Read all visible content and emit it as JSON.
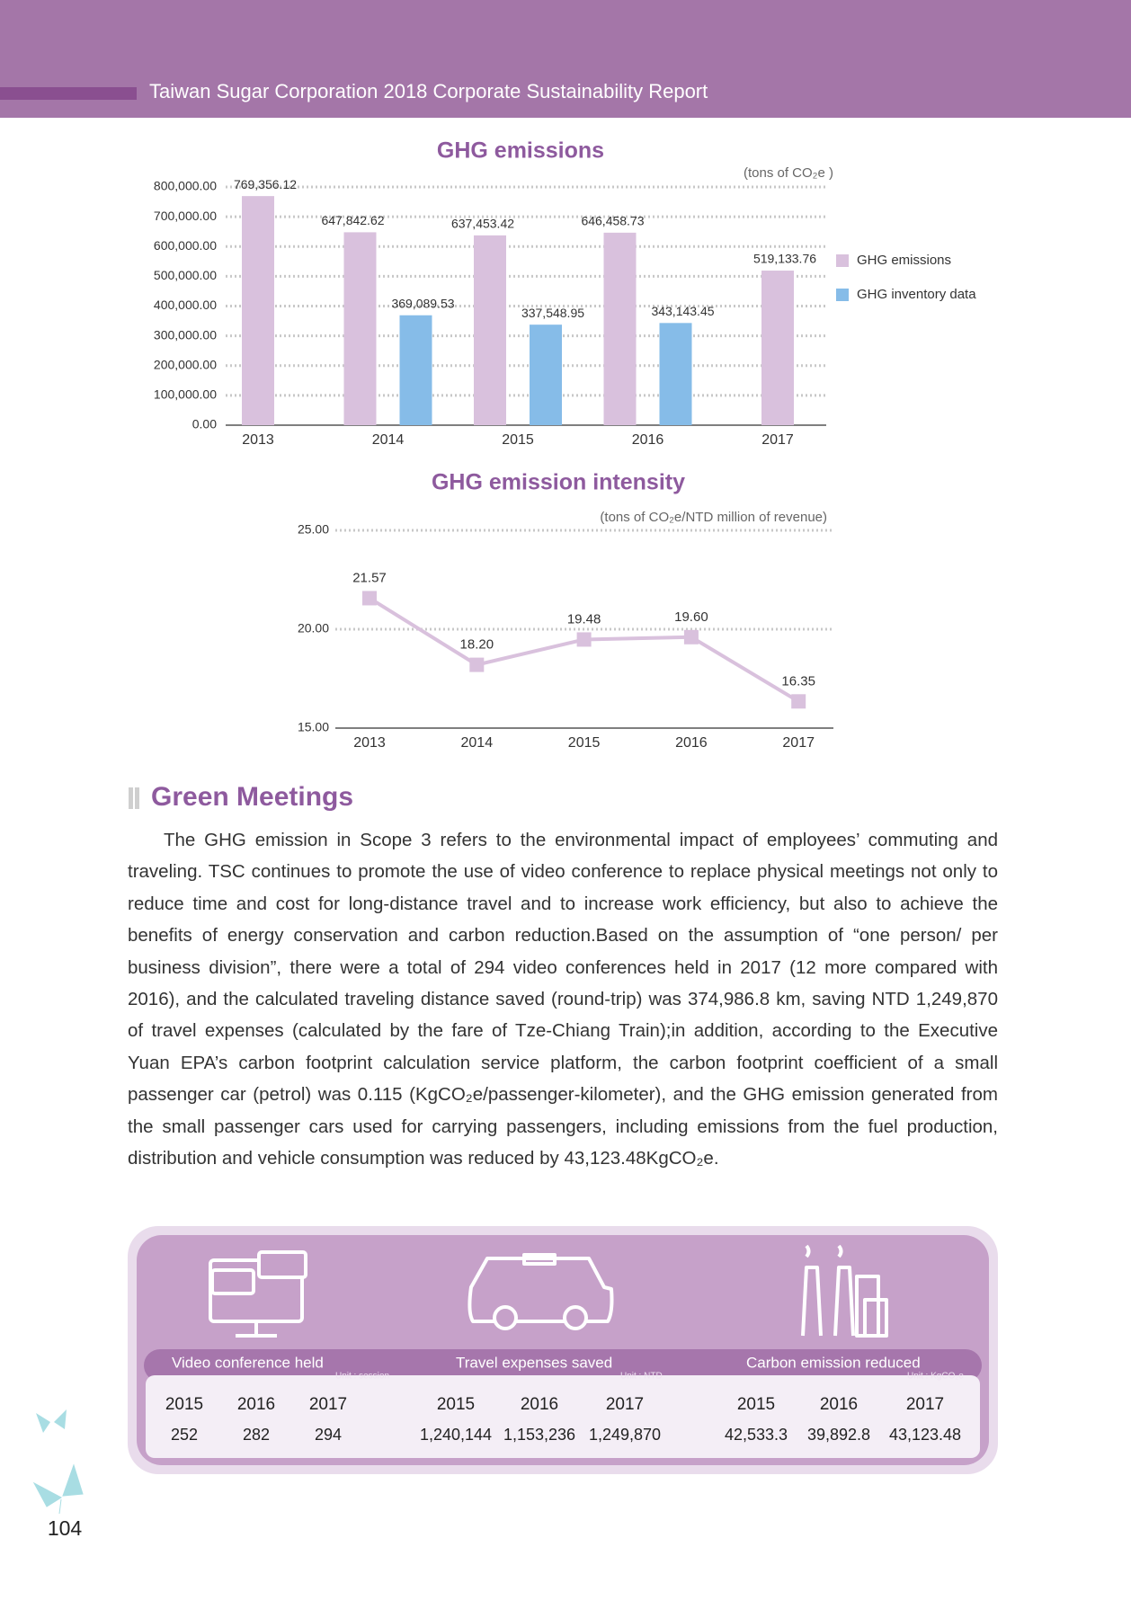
{
  "header": {
    "title": "Taiwan Sugar Corporation 2018 Corporate Sustainability Report"
  },
  "chart_data": [
    {
      "type": "bar",
      "title": "GHG emissions",
      "unit": "(tons of CO₂e )",
      "categories": [
        "2013",
        "2014",
        "2015",
        "2016",
        "2017"
      ],
      "series": [
        {
          "name": "GHG emissions",
          "color": "#d9c1dd",
          "values": [
            769356.12,
            647842.62,
            637453.42,
            646458.73,
            519133.76
          ],
          "value_labels": [
            "769,356.12",
            "647,842.62",
            "637,453.42",
            "646,458.73",
            "519,133.76"
          ]
        },
        {
          "name": "GHG inventory data",
          "color": "#86bce8",
          "values": [
            null,
            369089.53,
            337548.95,
            343143.45,
            null
          ],
          "value_labels": [
            null,
            "369,089.53",
            "337,548.95",
            "343,143.45",
            null
          ]
        }
      ],
      "ylim": [
        0,
        800000
      ],
      "yticks": [
        {
          "value": 0,
          "label": "0.00"
        },
        {
          "value": 100000,
          "label": "100,000.00"
        },
        {
          "value": 200000,
          "label": "200,000.00"
        },
        {
          "value": 300000,
          "label": "300,000.00"
        },
        {
          "value": 400000,
          "label": "400,000.00"
        },
        {
          "value": 500000,
          "label": "500,000.00"
        },
        {
          "value": 600000,
          "label": "600,000.00"
        },
        {
          "value": 700000,
          "label": "700,000.00"
        },
        {
          "value": 800000,
          "label": "800,000.00"
        }
      ],
      "grid": true
    },
    {
      "type": "line",
      "title": "GHG emission intensity",
      "unit": "(tons of CO₂e/NTD million of revenue)",
      "categories": [
        "2013",
        "2014",
        "2015",
        "2016",
        "2017"
      ],
      "values": [
        21.57,
        18.2,
        19.48,
        19.6,
        16.35
      ],
      "value_labels": [
        "21.57",
        "18.20",
        "19.48",
        "19.60",
        "16.35"
      ],
      "color": "#d9c1dd",
      "ylim": [
        15,
        25
      ],
      "yticks": [
        {
          "value": 15,
          "label": "15.00"
        },
        {
          "value": 20,
          "label": "20.00"
        },
        {
          "value": 25,
          "label": "25.00"
        }
      ],
      "grid": true
    }
  ],
  "section": {
    "heading": "Green Meetings",
    "paragraph": "The GHG emission in Scope 3 refers to the environmental impact of employees’ commuting and traveling. TSC continues to promote the use of video conference to replace physical meetings not only to reduce time and cost for long-distance travel and to increase work efficiency, but also to achieve the benefits of energy conservation and carbon reduction.Based on the assumption of “one person/ per business division”, there were a total of 294 video conferences held in 2017 (12 more compared with 2016), and the calculated traveling distance saved (round-trip) was 374,986.8 km, saving NTD 1,249,870 of travel expenses (calculated by the fare of Tze-Chiang Train);in addition, according to the Executive Yuan EPA’s carbon footprint calculation service platform, the carbon footprint coefficient of a small passenger car (petrol) was 0.115 (KgCO₂e/passenger-kilometer), and the GHG emission generated from the small passenger cars used for carrying passengers, including emissions from the fuel production, distribution and vehicle consumption was reduced by 43,123.48KgCO₂e."
  },
  "stats": [
    {
      "label": "Video conference held",
      "unit": "Unit : session",
      "years": [
        "2015",
        "2016",
        "2017"
      ],
      "values": [
        "252",
        "282",
        "294"
      ]
    },
    {
      "label": "Travel expenses saved",
      "unit": "Unit : NTD",
      "years": [
        "2015",
        "2016",
        "2017"
      ],
      "values": [
        "1,240,144",
        "1,153,236",
        "1,249,870"
      ]
    },
    {
      "label": "Carbon emission reduced",
      "unit": "Unit : KgCO₂e",
      "years": [
        "2015",
        "2016",
        "2017"
      ],
      "values": [
        "42,533.3",
        "39,892.8",
        "43,123.48"
      ]
    }
  ],
  "page_number": "104"
}
